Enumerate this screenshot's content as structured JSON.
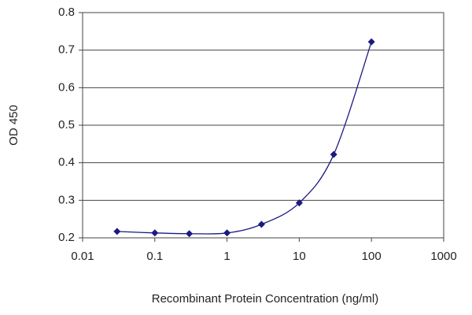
{
  "chart_data": {
    "type": "line",
    "xlabel": "Recombinant Protein Concentration (ng/ml)",
    "ylabel": "OD 450",
    "x": [
      0.03,
      0.1,
      0.3,
      1,
      3,
      10,
      30,
      100
    ],
    "values": [
      0.217,
      0.213,
      0.211,
      0.213,
      0.236,
      0.293,
      0.422,
      0.722
    ],
    "color": "#1a1a80",
    "xscale": "log",
    "xlim": [
      0.01,
      1000
    ],
    "xticks": [
      0.01,
      0.1,
      1,
      10,
      100,
      1000
    ],
    "ylim": [
      0.2,
      0.8
    ],
    "yticks": [
      0.2,
      0.3,
      0.4,
      0.5,
      0.6,
      0.7,
      0.8
    ],
    "grid": true
  }
}
